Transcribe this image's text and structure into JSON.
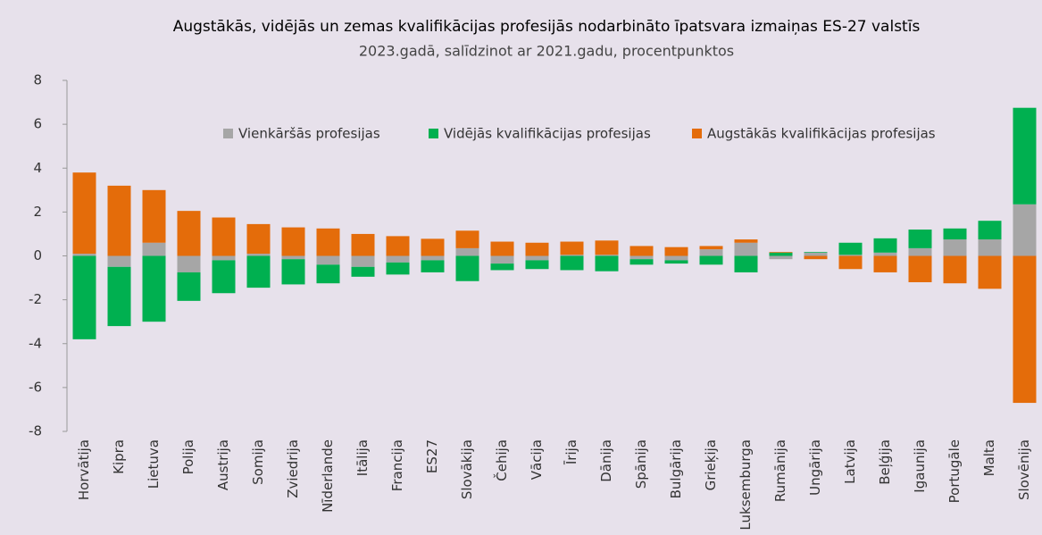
{
  "chart_data": {
    "type": "bar",
    "stacked": true,
    "title": "Augstākās, vidējās un zemas kvalifikācijas profesijās nodarbināto īpatsvara izmaiņas ES-27 valstīs",
    "subtitle": "2023.gadā, salīdzinot ar 2021.gadu, procentpunktos",
    "categories": [
      "Horvātija",
      "Kipra",
      "Lietuva",
      "Polija",
      "Austrija",
      "Somija",
      "Zviedrija",
      "Nīderlande",
      "Itālija",
      "Francija",
      "ES27",
      "Slovākija",
      "Čehija",
      "Vācija",
      "Īrija",
      "Dānija",
      "Spānija",
      "Bulgārija",
      "Grieķija",
      "Luksemburga",
      "Rumānija",
      "Ungārija",
      "Latvija",
      "Beļģija",
      "Igaunija",
      "Portugāle",
      "Malta",
      "Slovēnija"
    ],
    "series": [
      {
        "name": "Vienkāršās profesijas",
        "color": "#a6a6a6",
        "values": [
          0.1,
          -0.5,
          0.6,
          -0.75,
          -0.2,
          0.1,
          -0.15,
          -0.4,
          -0.5,
          -0.3,
          -0.2,
          0.35,
          -0.35,
          -0.2,
          0.05,
          0.05,
          -0.15,
          -0.2,
          0.3,
          0.6,
          -0.15,
          0.15,
          0.05,
          0.15,
          0.35,
          0.75,
          0.75,
          2.35
        ]
      },
      {
        "name": "Vidējās kvalifikācijas profesijas",
        "color": "#00b050",
        "values": [
          -3.8,
          -2.7,
          -3.0,
          -1.3,
          -1.5,
          -1.45,
          -1.15,
          -0.85,
          -0.45,
          -0.55,
          -0.55,
          -1.15,
          -0.3,
          -0.4,
          -0.65,
          -0.7,
          -0.25,
          -0.15,
          -0.4,
          -0.75,
          0.15,
          0.03,
          0.55,
          0.65,
          0.85,
          0.5,
          0.85,
          4.4
        ]
      },
      {
        "name": "Augstākās kvalifikācijas profesijas",
        "color": "#e46c0a",
        "values": [
          3.7,
          3.2,
          2.4,
          2.05,
          1.75,
          1.35,
          1.3,
          1.25,
          1.0,
          0.9,
          0.78,
          0.8,
          0.65,
          0.6,
          0.6,
          0.65,
          0.45,
          0.4,
          0.15,
          0.15,
          0.03,
          -0.15,
          -0.6,
          -0.75,
          -1.2,
          -1.25,
          -1.5,
          -6.7
        ]
      }
    ],
    "ylim": [
      -8,
      8
    ],
    "yticks": [
      -8,
      -6,
      -4,
      -2,
      0,
      2,
      4,
      6,
      8
    ]
  }
}
